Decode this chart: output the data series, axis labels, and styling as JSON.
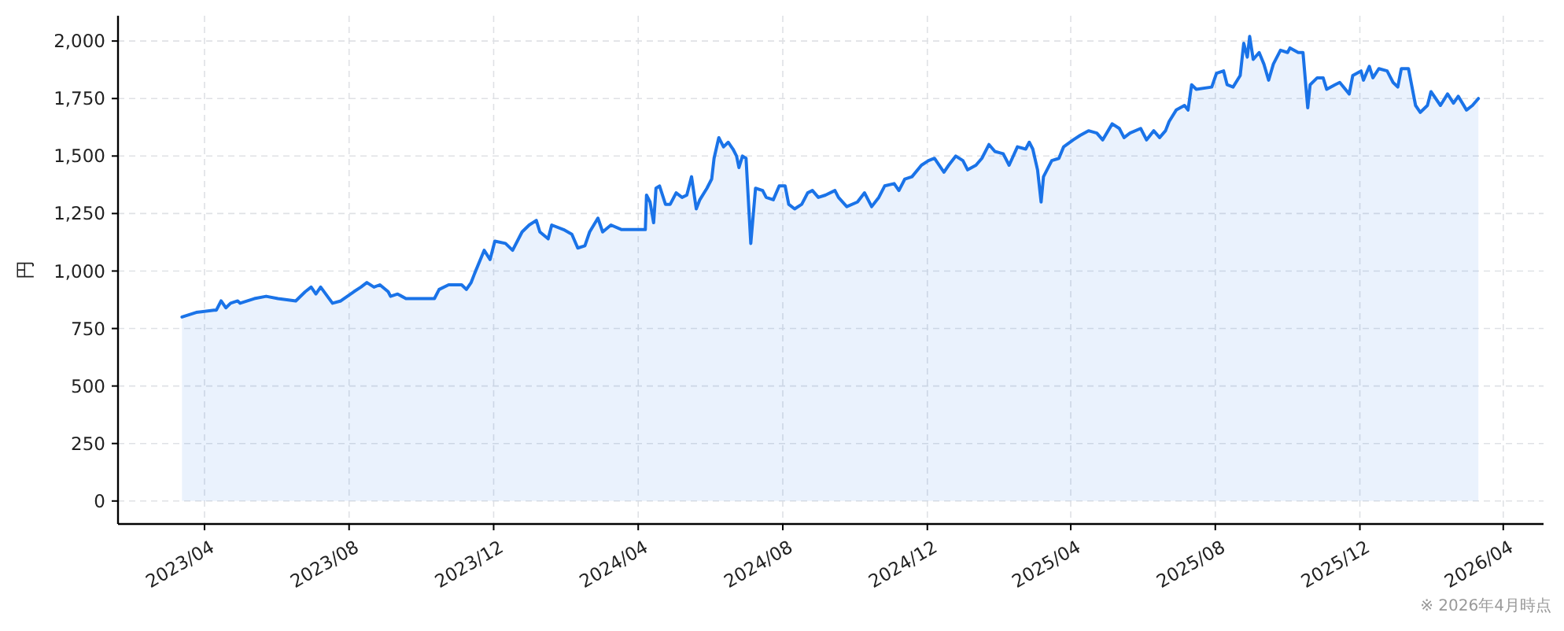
{
  "chart_data": {
    "type": "area",
    "ylabel": "円",
    "annotations": [
      "※ 2026年4月時点"
    ],
    "x": [
      "2023-03-13",
      "2023-03-25",
      "2023-04-09",
      "2023-04-11",
      "2023-04-15",
      "2023-04-19",
      "2023-04-23",
      "2023-04-29",
      "2023-05-01",
      "2023-05-13",
      "2023-05-23",
      "2023-06-02",
      "2023-06-17",
      "2023-06-25",
      "2023-06-30",
      "2023-07-04",
      "2023-07-08",
      "2023-07-18",
      "2023-07-25",
      "2023-08-05",
      "2023-08-11",
      "2023-08-16",
      "2023-08-22",
      "2023-08-27",
      "2023-09-03",
      "2023-09-05",
      "2023-09-11",
      "2023-09-18",
      "2023-09-29",
      "2023-10-12",
      "2023-10-16",
      "2023-10-24",
      "2023-11-04",
      "2023-11-08",
      "2023-11-12",
      "2023-11-15",
      "2023-11-19",
      "2023-11-23",
      "2023-11-28",
      "2023-12-02",
      "2023-12-11",
      "2023-12-17",
      "2023-12-25",
      "2023-12-31",
      "2024-01-06",
      "2024-01-09",
      "2024-01-16",
      "2024-01-19",
      "2024-01-29",
      "2024-02-05",
      "2024-02-10",
      "2024-02-16",
      "2024-02-20",
      "2024-02-27",
      "2024-03-02",
      "2024-03-09",
      "2024-03-18",
      "2024-03-24",
      "2024-03-31",
      "2024-04-07",
      "2024-04-08",
      "2024-04-11",
      "2024-04-14",
      "2024-04-16",
      "2024-04-19",
      "2024-04-24",
      "2024-04-28",
      "2024-05-03",
      "2024-05-08",
      "2024-05-12",
      "2024-05-16",
      "2024-05-20",
      "2024-05-23",
      "2024-05-29",
      "2024-06-02",
      "2024-06-04",
      "2024-06-08",
      "2024-06-12",
      "2024-06-16",
      "2024-06-20",
      "2024-06-23",
      "2024-06-25",
      "2024-06-28",
      "2024-07-01",
      "2024-07-05",
      "2024-07-09",
      "2024-07-15",
      "2024-07-18",
      "2024-07-24",
      "2024-07-29",
      "2024-08-03",
      "2024-08-06",
      "2024-08-11",
      "2024-08-17",
      "2024-08-22",
      "2024-08-26",
      "2024-08-31",
      "2024-09-06",
      "2024-09-14",
      "2024-09-17",
      "2024-09-24",
      "2024-10-03",
      "2024-10-09",
      "2024-10-15",
      "2024-10-21",
      "2024-10-26",
      "2024-11-03",
      "2024-11-07",
      "2024-11-12",
      "2024-11-18",
      "2024-11-26",
      "2024-12-02",
      "2024-12-07",
      "2024-12-15",
      "2024-12-19",
      "2024-12-25",
      "2024-12-31",
      "2025-01-04",
      "2025-01-11",
      "2025-01-16",
      "2025-01-22",
      "2025-01-27",
      "2025-02-03",
      "2025-02-08",
      "2025-02-15",
      "2025-02-22",
      "2025-02-25",
      "2025-02-28",
      "2025-03-04",
      "2025-03-07",
      "2025-03-09",
      "2025-03-16",
      "2025-03-22",
      "2025-03-26",
      "2025-04-03",
      "2025-04-09",
      "2025-04-16",
      "2025-04-23",
      "2025-04-28",
      "2025-05-06",
      "2025-05-12",
      "2025-05-16",
      "2025-05-21",
      "2025-05-30",
      "2025-06-04",
      "2025-06-10",
      "2025-06-15",
      "2025-06-20",
      "2025-06-23",
      "2025-06-29",
      "2025-07-06",
      "2025-07-09",
      "2025-07-12",
      "2025-07-16",
      "2025-07-29",
      "2025-08-02",
      "2025-08-08",
      "2025-08-11",
      "2025-08-16",
      "2025-08-22",
      "2025-08-25",
      "2025-08-28",
      "2025-08-30",
      "2025-09-02",
      "2025-09-07",
      "2025-09-11",
      "2025-09-15",
      "2025-09-19",
      "2025-09-25",
      "2025-10-01",
      "2025-10-03",
      "2025-10-10",
      "2025-10-14",
      "2025-10-18",
      "2025-10-20",
      "2025-10-26",
      "2025-10-31",
      "2025-11-03",
      "2025-11-10",
      "2025-11-14",
      "2025-11-22",
      "2025-11-25",
      "2025-12-02",
      "2025-12-04",
      "2025-12-09",
      "2025-12-12",
      "2025-12-17",
      "2025-12-24",
      "2025-12-29",
      "2026-01-02",
      "2026-01-05",
      "2026-01-11",
      "2026-01-17",
      "2026-01-21",
      "2026-01-27",
      "2026-01-30",
      "2026-02-07",
      "2026-02-13",
      "2026-02-18",
      "2026-02-22",
      "2026-03-01",
      "2026-03-06",
      "2026-03-11"
    ],
    "values": [
      800,
      820,
      830,
      830,
      870,
      840,
      860,
      870,
      860,
      880,
      890,
      880,
      870,
      910,
      930,
      900,
      930,
      860,
      870,
      910,
      930,
      950,
      930,
      940,
      910,
      890,
      900,
      880,
      880,
      880,
      920,
      940,
      940,
      920,
      950,
      990,
      1040,
      1090,
      1050,
      1130,
      1120,
      1090,
      1170,
      1200,
      1220,
      1170,
      1140,
      1200,
      1180,
      1160,
      1100,
      1110,
      1170,
      1230,
      1170,
      1200,
      1180,
      1180,
      1180,
      1180,
      1330,
      1300,
      1210,
      1360,
      1370,
      1290,
      1290,
      1340,
      1320,
      1330,
      1410,
      1270,
      1310,
      1360,
      1400,
      1490,
      1580,
      1540,
      1560,
      1530,
      1500,
      1450,
      1500,
      1490,
      1120,
      1360,
      1350,
      1320,
      1310,
      1370,
      1370,
      1290,
      1270,
      1290,
      1340,
      1350,
      1320,
      1330,
      1350,
      1320,
      1280,
      1300,
      1340,
      1280,
      1320,
      1370,
      1380,
      1350,
      1400,
      1410,
      1460,
      1480,
      1490,
      1430,
      1460,
      1500,
      1480,
      1440,
      1460,
      1490,
      1550,
      1520,
      1510,
      1460,
      1540,
      1530,
      1560,
      1530,
      1440,
      1300,
      1410,
      1480,
      1490,
      1540,
      1570,
      1590,
      1610,
      1600,
      1570,
      1640,
      1620,
      1580,
      1600,
      1620,
      1570,
      1610,
      1580,
      1610,
      1650,
      1700,
      1720,
      1700,
      1810,
      1790,
      1800,
      1860,
      1870,
      1810,
      1800,
      1850,
      1990,
      1930,
      2020,
      1920,
      1950,
      1900,
      1830,
      1900,
      1960,
      1950,
      1970,
      1950,
      1950,
      1710,
      1810,
      1840,
      1840,
      1790,
      1810,
      1820,
      1770,
      1850,
      1870,
      1830,
      1890,
      1840,
      1880,
      1870,
      1820,
      1800,
      1880,
      1880,
      1720,
      1690,
      1720,
      1780,
      1720,
      1770,
      1730,
      1760,
      1700,
      1720,
      1750
    ],
    "color": "#1a73e8",
    "xlim": [
      "2023-01-18",
      "2026-05-05"
    ],
    "ylim": [
      -100,
      2110
    ],
    "xticks": [
      {
        "value": "2023-04",
        "label": "2023/04"
      },
      {
        "value": "2023-08",
        "label": "2023/08"
      },
      {
        "value": "2023-12",
        "label": "2023/12"
      },
      {
        "value": "2024-04",
        "label": "2024/04"
      },
      {
        "value": "2024-08",
        "label": "2024/08"
      },
      {
        "value": "2024-12",
        "label": "2024/12"
      },
      {
        "value": "2025-04",
        "label": "2025/04"
      },
      {
        "value": "2025-08",
        "label": "2025/08"
      },
      {
        "value": "2025-12",
        "label": "2025/12"
      },
      {
        "value": "2026-04",
        "label": "2026/04"
      }
    ],
    "yticks": [
      0,
      250,
      500,
      750,
      {
        "value": 1000,
        "label": "1,000"
      },
      {
        "value": 1250,
        "label": "1,250"
      },
      {
        "value": 1500,
        "label": "1,500"
      },
      {
        "value": 1750,
        "label": "1,750"
      },
      {
        "value": 2000,
        "label": "2,000"
      }
    ],
    "grid": true
  }
}
